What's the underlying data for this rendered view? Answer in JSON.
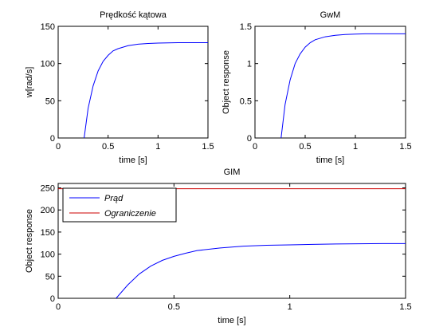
{
  "chart_data": [
    {
      "type": "line",
      "title": "Prędkość kątowa",
      "xlabel": "time [s]",
      "ylabel": "w[rad/s]",
      "xlim": [
        0,
        1.5
      ],
      "ylim": [
        0,
        150
      ],
      "xticks": [
        0,
        0.5,
        1,
        1.5
      ],
      "xtick_labels": [
        "0",
        "0.5",
        "1",
        "1.5"
      ],
      "yticks": [
        0,
        50,
        100,
        150
      ],
      "ytick_labels": [
        "0",
        "50",
        "100",
        "150"
      ],
      "grid": false,
      "series": [
        {
          "color": "#0000ff",
          "x": [
            0.26,
            0.3,
            0.35,
            0.4,
            0.45,
            0.5,
            0.55,
            0.6,
            0.7,
            0.8,
            0.9,
            1.0,
            1.1,
            1.2,
            1.3,
            1.4,
            1.5
          ],
          "y": [
            0,
            40,
            70,
            90,
            103,
            111,
            117,
            120,
            124,
            126,
            127,
            127.5,
            127.8,
            128,
            128,
            128,
            128
          ]
        }
      ]
    },
    {
      "type": "line",
      "title": "GwM",
      "xlabel": "time [s]",
      "ylabel": "Object response",
      "xlim": [
        0,
        1.5
      ],
      "ylim": [
        0,
        1.5
      ],
      "xticks": [
        0,
        0.5,
        1,
        1.5
      ],
      "xtick_labels": [
        "0",
        "0.5",
        "1",
        "1.5"
      ],
      "yticks": [
        0,
        0.5,
        1,
        1.5
      ],
      "ytick_labels": [
        "0",
        "0.5",
        "1",
        "1.5"
      ],
      "grid": false,
      "series": [
        {
          "color": "#0000ff",
          "x": [
            0.26,
            0.3,
            0.35,
            0.4,
            0.45,
            0.5,
            0.55,
            0.6,
            0.7,
            0.8,
            0.9,
            1.0,
            1.1,
            1.2,
            1.3,
            1.4,
            1.5
          ],
          "y": [
            0,
            0.45,
            0.78,
            1.0,
            1.13,
            1.22,
            1.28,
            1.32,
            1.36,
            1.38,
            1.39,
            1.395,
            1.4,
            1.4,
            1.4,
            1.4,
            1.4
          ]
        }
      ]
    },
    {
      "type": "line",
      "title": "GIM",
      "xlabel": "time [s]",
      "ylabel": "Object response",
      "xlim": [
        0,
        1.5
      ],
      "ylim": [
        0,
        260
      ],
      "xticks": [
        0,
        0.5,
        1,
        1.5
      ],
      "xtick_labels": [
        "0",
        "0.5",
        "1",
        "1.5"
      ],
      "yticks": [
        0,
        50,
        100,
        150,
        200,
        250
      ],
      "ytick_labels": [
        "0",
        "50",
        "100",
        "150",
        "200",
        "250"
      ],
      "grid": false,
      "legend": {
        "placement": "top-left",
        "box": true
      },
      "series": [
        {
          "name": "Prąd",
          "color": "#0000ff",
          "x": [
            0.25,
            0.3,
            0.35,
            0.4,
            0.45,
            0.5,
            0.55,
            0.6,
            0.7,
            0.8,
            0.9,
            1.0,
            1.1,
            1.2,
            1.3,
            1.4,
            1.5
          ],
          "y": [
            0,
            30,
            55,
            73,
            86,
            95,
            102,
            108,
            114,
            118,
            120,
            121,
            122,
            123,
            123.5,
            124,
            124
          ]
        },
        {
          "name": "Ograniczenie",
          "color": "#cc0000",
          "x": [
            0,
            1.5
          ],
          "y": [
            248,
            248
          ]
        }
      ]
    }
  ]
}
